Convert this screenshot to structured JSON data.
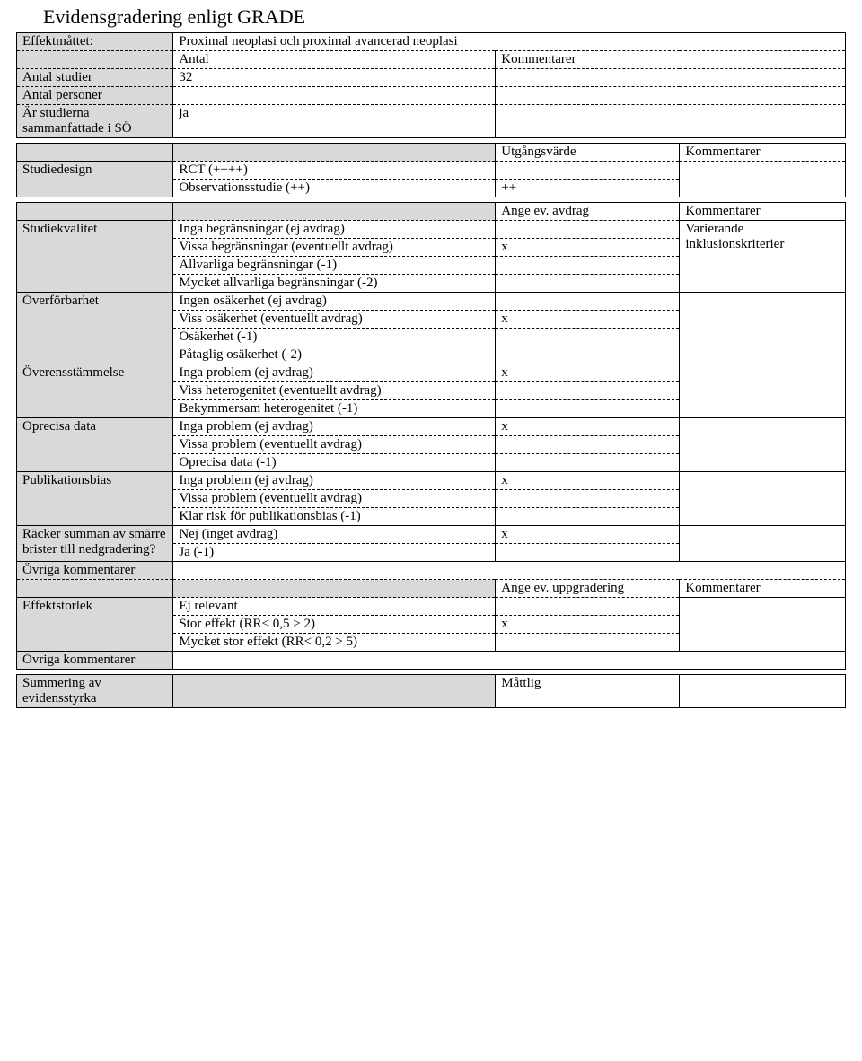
{
  "title": "Evidensgradering enligt GRADE",
  "sec1": {
    "effektmatt_label": "Effektmåttet:",
    "effektmatt_value": "Proximal neoplasi och proximal avancerad neoplasi",
    "antal_label": "Antal",
    "kommentarer_label": "Kommentarer",
    "antal_studier_label": "Antal studier",
    "antal_studier_value": "32",
    "antal_personer_label": "Antal personer",
    "ar_studierna_label": "Är studierna sammanfattade i SÖ",
    "ar_studierna_value": "ja"
  },
  "sec2": {
    "utgangsvarde": "Utgångsvärde",
    "kommentarer": "Kommentarer",
    "studiedesign_label": "Studiedesign",
    "rct": "RCT  (++++)",
    "obs": "Observationsstudie (++)",
    "obs_val": "++"
  },
  "sec3": {
    "ange_avdrag": "Ange ev. avdrag",
    "kommentarer": "Kommentarer",
    "studiekvalitet_label": "Studiekvalitet",
    "sk_r1": "Inga begränsningar (ej avdrag)",
    "sk_r2": "Vissa begränsningar (eventuellt avdrag)",
    "sk_r3": "Allvarliga begränsningar (-1)",
    "sk_r4": "Mycket allvarliga begränsningar (-2)",
    "sk_comment": "Varierande inklusionskriterier",
    "overforbarhet_label": "Överförbarhet",
    "of_r1": "Ingen osäkerhet (ej avdrag)",
    "of_r2": "Viss osäkerhet (eventuellt avdrag)",
    "of_r3": "Osäkerhet (-1)",
    "of_r4": "Påtaglig osäkerhet (-2)",
    "overens_label": "Överensstämmelse",
    "oe_r1": "Inga problem (ej avdrag)",
    "oe_r2": "Viss heterogenitet (eventuellt avdrag)",
    "oe_r3": "Bekymmersam heterogenitet (-1)",
    "oprecisa_label": "Oprecisa data",
    "op_r1": "Inga problem (ej avdrag)",
    "op_r2": "Vissa problem (eventuellt avdrag)",
    "op_r3": "Oprecisa data (-1)",
    "pub_label": "Publikationsbias",
    "pb_r1": "Inga problem (ej avdrag)",
    "pb_r2": "Vissa problem (eventuellt avdrag)",
    "pb_r3": "Klar risk för publikationsbias (-1)",
    "racker_label": "Räcker summan av smärre brister till nedgradering?",
    "rk_r1": "Nej (inget avdrag)",
    "rk_r2": "Ja (-1)",
    "ovriga_label": "Övriga kommentarer",
    "ange_upp": "Ange ev. uppgradering",
    "effektstorlek_label": "Effektstorlek",
    "es_r1": "Ej relevant",
    "es_r2": "Stor effekt (RR< 0,5 > 2)",
    "es_r3": "Mycket stor effekt (RR< 0,2 > 5)",
    "x": "x"
  },
  "sec4": {
    "summering_label": "Summering av evidensstyrka",
    "summering_value": "Måttlig"
  }
}
